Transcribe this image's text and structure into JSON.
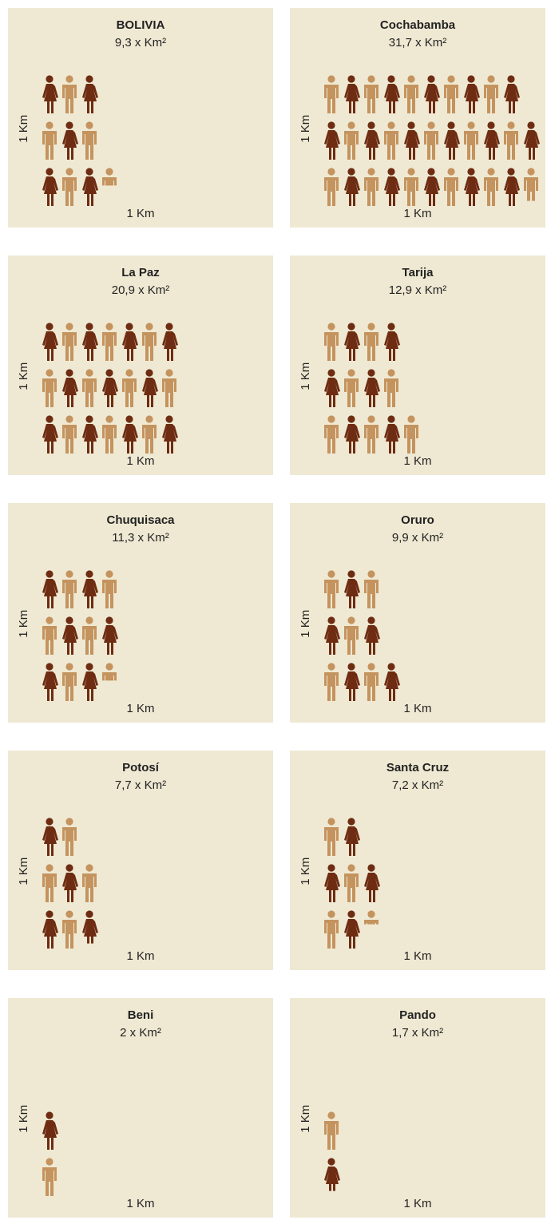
{
  "chart_data": [
    {
      "type": "pictogram",
      "title": "BOLIVIA",
      "values": [
        9.3
      ],
      "value_labels": [
        "9,3 x Km²"
      ],
      "xlabel": "1 Km",
      "ylabel": "1 Km"
    },
    {
      "type": "pictogram",
      "title": "Cochabamba",
      "values": [
        31.7
      ],
      "value_labels": [
        "31,7 x Km²"
      ],
      "xlabel": "1 Km",
      "ylabel": "1 Km"
    },
    {
      "type": "pictogram",
      "title": "La Paz",
      "values": [
        20.9
      ],
      "value_labels": [
        "20,9 x Km²"
      ],
      "xlabel": "1 Km",
      "ylabel": "1 Km"
    },
    {
      "type": "pictogram",
      "title": "Tarija",
      "values": [
        12.9
      ],
      "value_labels": [
        "12,9 x Km²"
      ],
      "xlabel": "1 Km",
      "ylabel": "1 Km"
    },
    {
      "type": "pictogram",
      "title": "Chuquisaca",
      "values": [
        11.3
      ],
      "value_labels": [
        "11,3 x Km²"
      ],
      "xlabel": "1 Km",
      "ylabel": "1 Km"
    },
    {
      "type": "pictogram",
      "title": "Oruro",
      "values": [
        9.9
      ],
      "value_labels": [
        "9,9 x Km²"
      ],
      "xlabel": "1 Km",
      "ylabel": "1 Km"
    },
    {
      "type": "pictogram",
      "title": "Potosí",
      "values": [
        7.7
      ],
      "value_labels": [
        "7,7 x Km²"
      ],
      "xlabel": "1 Km",
      "ylabel": "1 Km"
    },
    {
      "type": "pictogram",
      "title": "Santa Cruz",
      "values": [
        7.2
      ],
      "value_labels": [
        "7,2 x Km²"
      ],
      "xlabel": "1 Km",
      "ylabel": "1 Km"
    },
    {
      "type": "pictogram",
      "title": "Beni",
      "values": [
        2
      ],
      "value_labels": [
        "2 x Km²"
      ],
      "xlabel": "1 Km",
      "ylabel": "1 Km"
    },
    {
      "type": "pictogram",
      "title": "Pando",
      "values": [
        1.7
      ],
      "value_labels": [
        "1,7 x Km²"
      ],
      "xlabel": "1 Km",
      "ylabel": "1 Km"
    }
  ]
}
